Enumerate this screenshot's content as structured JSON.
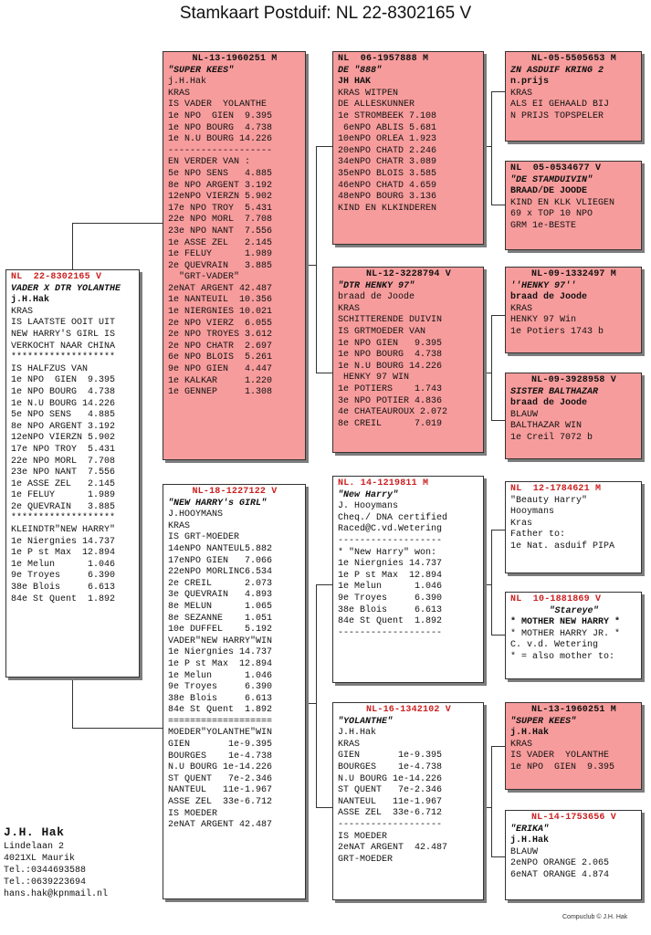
{
  "page_title": "Stamkaart Postduif: NL  22-8302165 V",
  "cards": {
    "subject": {
      "ring": "NL  22-8302165 V",
      "name": "VADER X DTR YOLANTHE",
      "owner": "j.H.Hak",
      "lines": [
        "KRAS",
        "IS LAATSTE OOIT UIT",
        "NEW HARRY'S GIRL IS",
        "VERKOCHT NAAR CHINA",
        "*******************",
        "IS HALFZUS VAN",
        "1e NPO  GIEN  9.395",
        "1e NPO BOURG  4.738",
        "1e N.U BOURG 14.226",
        "5e NPO SENS   4.885",
        "8e NPO ARGENT 3.192",
        "12eNPO VIERZN 5.902",
        "17e NPO TROY  5.431",
        "22e NPO MORL  7.708",
        "23e NPO NANT  7.556",
        "1e ASSE ZEL   2.145",
        "1e FELUY      1.989",
        "2e QUEVRAIN   3.885",
        "*******************",
        "KLEINDTR\"NEW HARRY\"",
        "1e Niergnies 14.737",
        "1e P st Max  12.894",
        "1e Melun      1.046",
        "9e Troyes     6.390",
        "38e Blois     6.613",
        "84e St Quent  1.892"
      ]
    },
    "father": {
      "ring": "NL-13-1960251 M",
      "name": "\"SUPER KEES\"",
      "owner": "j.H.Hak",
      "lines": [
        "KRAS",
        "IS VADER  YOLANTHE",
        "1e NPO  GIEN  9.395",
        "1e NPO BOURG  4.738",
        "1e N.U BOURG 14.226",
        "-------------------",
        "EN VERDER VAN :",
        "5e NPO SENS   4.885",
        "8e NPO ARGENT 3.192",
        "12eNPO VIERZN 5.902",
        "17e NPO TROY  5.431",
        "22e NPO MORL  7.708",
        "23e NPO NANT  7.556",
        "1e ASSE ZEL   2.145",
        "1e FELUY      1.989",
        "2e QUEVRAIN   3.885",
        "  \"GRT-VADER\"",
        "2eNAT ARGENT 42.487",
        "1e NANTEUIL  10.356",
        "1e NIERGNIES 10.021",
        "2e NPO VIERZ  6.055",
        "2e NPO TROYES 3.612",
        "2e NPO CHATR  2.697",
        "6e NPO BLOIS  5.261",
        "9e NPO GIEN   4.447",
        "1e KALKAR     1.220",
        "1e GENNEP     1.308"
      ]
    },
    "mother": {
      "ring": "NL-18-1227122 V",
      "name": "\"NEW HARRY's GIRL\"",
      "owner": "J.HOOYMANS",
      "lines": [
        "KRAS",
        "IS GRT-MOEDER",
        "14eNPO NANTEUL5.882",
        "17eNPO GIEN   7.066",
        "22eNPO MORLINC6.534",
        "2e CREIL      2.073",
        "3e QUEVRAIN   4.893",
        "8e MELUN      1.065",
        "8e SEZANNE    1.051",
        "10e DUFFEL    5.192",
        "VADER\"NEW HARRY\"WIN",
        "1e Niergnies 14.737",
        "1e P st Max  12.894",
        "1e Melun      1.046",
        "9e Troyes     6.390",
        "38e Blois     6.613",
        "84e St Quent  1.892",
        "===================",
        "MOEDER\"YOLANTHE\"WIN",
        "GIEN       1e-9.395",
        "BOURGES    1e-4.738",
        "N.U BOURG 1e-14.226",
        "ST QUENT   7e-2.346",
        "NANTEUL   11e-1.967",
        "ASSE ZEL  33e-6.712",
        "IS MOEDER",
        "2eNAT ARGENT 42.487"
      ]
    },
    "ff": {
      "ring": "NL  06-1957888 M",
      "name": "DE \"888\"",
      "owner": "JH HAK",
      "lines": [
        "KRAS WITPEN",
        "DE ALLESKUNNER",
        "1e STROMBEEK 7.108",
        " 6eNPO ABLIS 5.681",
        "10eNPO ORLEA 1.923",
        "20eNPO CHATD 2.246",
        "34eNPO CHATR 3.089",
        "35eNPO BLOIS 3.585",
        "46eNPO CHATD 4.659",
        "48eNPO BOURG 3.136",
        "KIND EN KLKINDEREN"
      ]
    },
    "fm": {
      "ring": "NL-12-3228794 V",
      "name": "\"DTR HENKY 97\"",
      "owner": "braad de Joode",
      "lines": [
        "KRAS",
        "SCHITTERENDE DUIVIN",
        "IS GRTMOEDER VAN",
        "1e NPO GIEN   9.395",
        "1e NPO BOURG  4.738",
        "1e N.U BOURG 14.226",
        " HENKY 97 WIN",
        "1e POTIERS    1.743",
        "3e NPO POTIER 4.836",
        "4e CHATEAUROUX 2.072",
        "8e CREIL      7.019"
      ]
    },
    "mf": {
      "ring": "NL. 14-1219811 M",
      "name": "\"New Harry\"",
      "owner": "J. Hooymans",
      "lines": [
        "Cheq./ DNA certified",
        "Raced@C.vd.Wetering",
        "-------------------",
        "* \"New Harry\" won:",
        "1e Niergnies 14.737",
        "1e P st Max  12.894",
        "1e Melun      1.046",
        "9e Troyes     6.390",
        "38e Blois     6.613",
        "84e St Quent  1.892",
        "-------------------"
      ]
    },
    "mm": {
      "ring": "NL-16-1342102 V",
      "name": "\"YOLANTHE\"",
      "owner": "J.H.Hak",
      "lines": [
        "KRAS",
        "GIEN       1e-9.395",
        "BOURGES    1e-4.738",
        "N.U BOURG 1e-14.226",
        "ST QUENT   7e-2.346",
        "NANTEUL   11e-1.967",
        "ASSE ZEL  33e-6.712",
        "-------------------",
        "IS MOEDER",
        "2eNAT ARGENT  42.487",
        "GRT-MOEDER"
      ]
    },
    "fff": {
      "ring": "NL-05-5505653 M",
      "name": "ZN ASDUIF KRING 2",
      "owner": "n.prijs",
      "lines": [
        "KRAS",
        "ALS EI GEHAALD BIJ",
        "N PRIJS TOPSPELER"
      ]
    },
    "ffm": {
      "ring": "NL  05-0534677 V",
      "name": "\"DE STAMDUIVIN\"",
      "owner": "BRAAD/DE JOODE",
      "lines": [
        "KIND EN KLK VLIEGEN",
        "69 x TOP 10 NPO",
        "GRM 1e-BESTE"
      ]
    },
    "fmf": {
      "ring": "NL-09-1332497 M",
      "name": "''HENKY 97''",
      "owner": "braad de Joode",
      "lines": [
        "KRAS",
        "HENKY 97 Win",
        "1e Potiers 1743 b"
      ]
    },
    "fmm": {
      "ring": "NL-09-3928958 V",
      "name": "SISTER BALTHAZAR",
      "owner": "braad de Joode",
      "lines": [
        "BLAUW",
        "BALTHAZAR WIN",
        "1e Creil 7072 b"
      ]
    },
    "mff": {
      "ring": "NL  12-1784621 M",
      "name": "\"Beauty Harry\"",
      "owner": "Hooymans",
      "lines": [
        "Kras",
        "Father to:",
        "1e Nat. asduif PIPA"
      ]
    },
    "mfm": {
      "ring": "NL  10-1881869 V",
      "name": "\"Stareye\"",
      "owner": "",
      "lines": [
        "* MOTHER NEW HARRY *",
        "* MOTHER HARRY JR. *",
        "C. v.d. Wetering",
        "* = also mother to:"
      ]
    },
    "mmf": {
      "ring": "NL-13-1960251 M",
      "name": "\"SUPER KEES\"",
      "owner": "j.H.Hak",
      "lines": [
        "KRAS",
        "IS VADER  YOLANTHE",
        "1e NPO  GIEN  9.395"
      ]
    },
    "mmm": {
      "ring": "NL-14-1753656 V",
      "name": "\"ERIKA\"",
      "owner": "j.H.Hak",
      "lines": [
        "BLAUW",
        "2eNPO ORANGE 2.065",
        "6eNAT ORANGE 4.874"
      ]
    }
  },
  "breeder": {
    "name": "J.H. Hak",
    "address": "Lindelaan 2",
    "city": "4021XL  Maurik",
    "tel1": "Tel.:0344693588",
    "tel2": "Tel.:0639223694",
    "email": "hans.hak@kpnmail.nl"
  },
  "credit": "Compuclub © J.H. Hak",
  "colors": {
    "male_card": "#f79c9c",
    "female_card": "#ffffff",
    "ring_female": "#cc1f1f"
  }
}
